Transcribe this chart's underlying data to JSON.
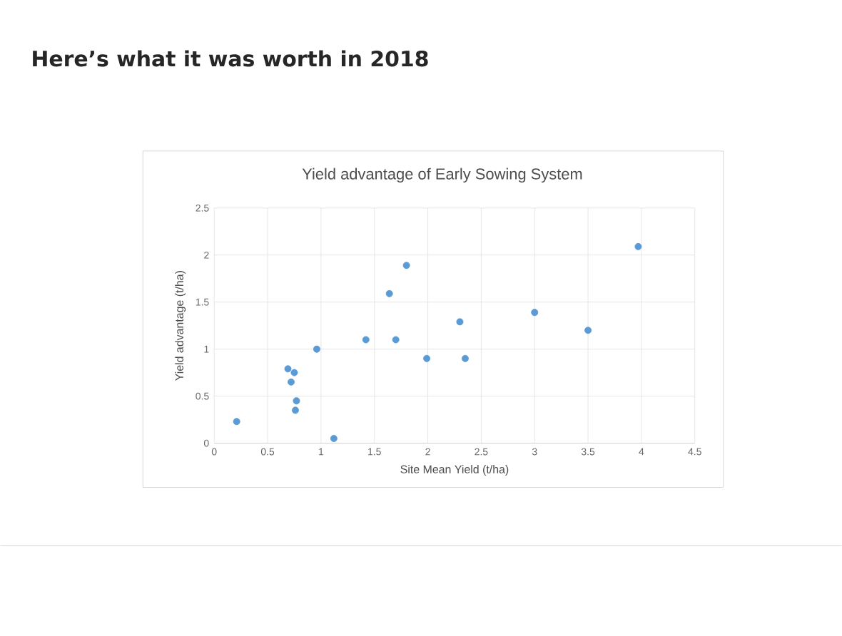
{
  "chart_data": {
    "type": "scatter",
    "title": "Here’s what it was worth in 2018",
    "subtitle": "Yield advantage of Early Sowing System",
    "xlabel": "Site Mean Yield (t/ha)",
    "ylabel": "Yield advantage (t/ha)",
    "x": [
      0.21,
      0.69,
      0.75,
      0.72,
      0.77,
      0.76,
      1.12,
      0.96,
      1.42,
      1.64,
      1.7,
      1.8,
      1.99,
      2.3,
      2.35,
      3.0,
      3.5,
      3.97
    ],
    "series": [
      {
        "color": "#5b9bd5",
        "values": [
          0.23,
          0.79,
          0.75,
          0.65,
          0.45,
          0.35,
          0.05,
          1.0,
          1.1,
          1.59,
          1.1,
          1.89,
          0.9,
          1.29,
          0.9,
          1.39,
          1.2,
          2.09
        ]
      }
    ],
    "xlim": [
      0,
      4.5
    ],
    "ylim": [
      0,
      2.5
    ],
    "xticks": [
      0,
      0.5,
      1,
      1.5,
      2,
      2.5,
      3,
      3.5,
      4,
      4.5
    ],
    "yticks": [
      0,
      0.5,
      1,
      1.5,
      2,
      2.5
    ],
    "grid": true,
    "marker": "circle"
  }
}
